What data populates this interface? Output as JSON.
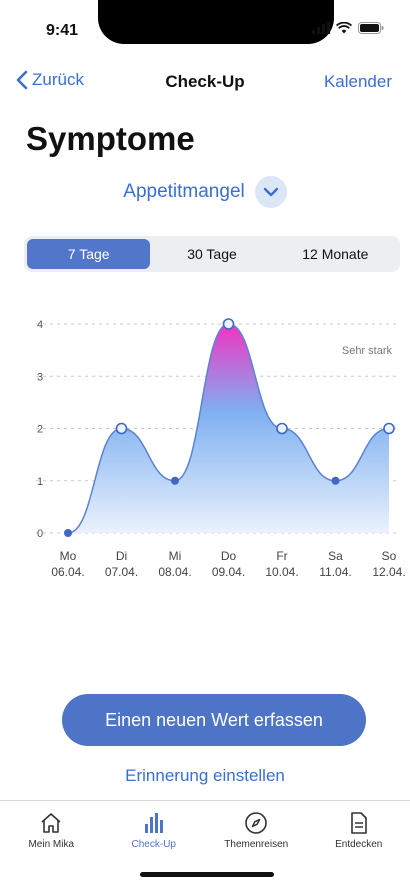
{
  "status_bar": {
    "time": "9:41"
  },
  "nav": {
    "back_label": "Zurück",
    "title": "Check-Up",
    "right_label": "Kalender"
  },
  "page_title": "Symptome",
  "symptom_selector": {
    "label": "Appetitmangel",
    "icon": "chevron-down-icon"
  },
  "period_tabs": [
    {
      "label": "7 Tage",
      "selected": true
    },
    {
      "label": "30 Tage",
      "selected": false
    },
    {
      "label": "12 Monate",
      "selected": false
    }
  ],
  "chart_data": {
    "type": "area",
    "categories": [
      "Mo",
      "Di",
      "Mi",
      "Do",
      "Fr",
      "Sa",
      "So"
    ],
    "dates": [
      "06.04.",
      "07.04.",
      "08.04.",
      "09.04.",
      "10.04.",
      "11.04.",
      "12.04."
    ],
    "values": [
      0,
      2,
      1,
      4,
      2,
      1,
      2
    ],
    "ylim": [
      0,
      4
    ],
    "yticks": [
      0,
      1,
      2,
      3,
      4
    ],
    "annotation": "Sehr stark",
    "grid": true,
    "colors": {
      "line": "#5b83cf",
      "point": "#3f68c4",
      "fill_low": "#eaf2fd",
      "fill_mid": "#7fb0f0",
      "fill_high": "#f233c2"
    }
  },
  "actions": {
    "primary": "Einen neuen Wert erfassen",
    "secondary": "Erinnerung einstellen"
  },
  "tab_bar": [
    {
      "label": "Mein Mika",
      "icon": "home-icon",
      "active": false
    },
    {
      "label": "Check-Up",
      "icon": "bar-chart-icon",
      "active": true
    },
    {
      "label": "Themenreisen",
      "icon": "compass-icon",
      "active": false
    },
    {
      "label": "Entdecken",
      "icon": "document-icon",
      "active": false
    }
  ]
}
